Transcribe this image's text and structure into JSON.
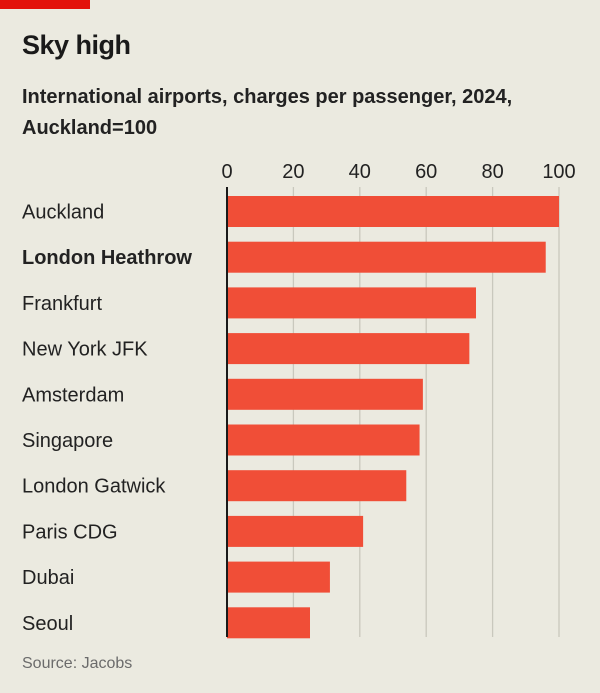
{
  "header": {
    "title": "Sky high",
    "subtitle": "International airports, charges per passenger, 2024, Auckland=100"
  },
  "footer": {
    "source": "Source: Jacobs"
  },
  "chart_data": {
    "type": "bar",
    "orientation": "horizontal",
    "title": "Sky high",
    "subtitle": "International airports, charges per passenger, 2024, Auckland=100",
    "categories": [
      "Auckland",
      "London Heathrow",
      "Frankfurt",
      "New York JFK",
      "Amsterdam",
      "Singapore",
      "London Gatwick",
      "Paris CDG",
      "Dubai",
      "Seoul"
    ],
    "highlighted_category": "London Heathrow",
    "values": [
      100,
      96,
      75,
      73,
      59,
      58,
      54,
      41,
      31,
      25
    ],
    "xlim": [
      0,
      100
    ],
    "xticks": [
      0,
      20,
      40,
      60,
      80,
      100
    ],
    "xaxis_position": "top",
    "grid": true,
    "bar_color": "#f04e37",
    "background_color": "#ebeae0",
    "source": "Source: Jacobs"
  }
}
